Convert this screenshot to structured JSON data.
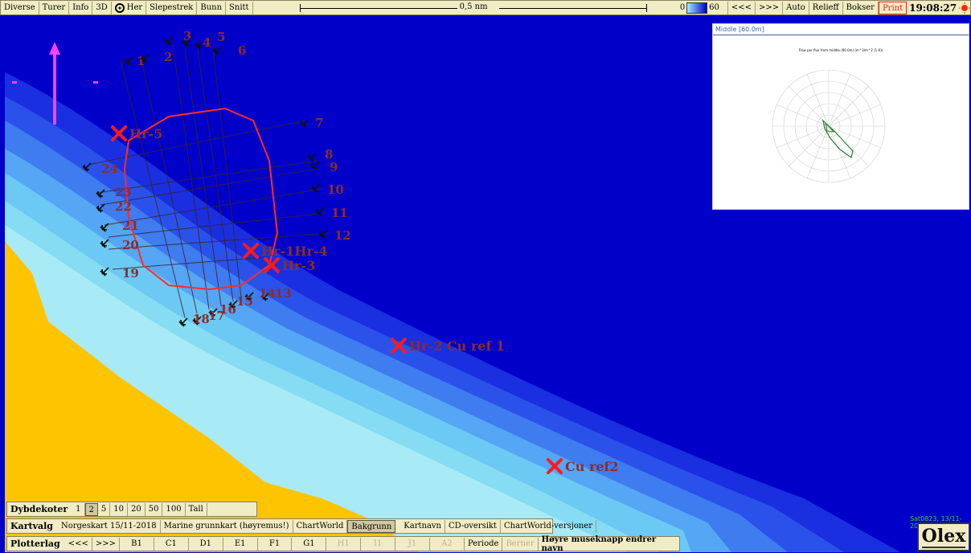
{
  "topbar": {
    "buttons": [
      "Diverse",
      "Turer",
      "Info",
      "3D",
      "Her",
      "Slepestrek",
      "Bunn",
      "Snitt"
    ],
    "scale_label": "0,5 nm",
    "depth_min": "0",
    "depth_max": "60",
    "nav_prev": "<<<",
    "nav_next": ">>>",
    "right_buttons": [
      "Auto",
      "Relieff",
      "Bokser"
    ],
    "print_label": "Print",
    "clock": "19:08:27"
  },
  "inset": {
    "title": "Middle [60.0m]",
    "subtitle": "Flow per flux from middle (60.0m) (m^3/m^2 (1-0))"
  },
  "markers": [
    {
      "label": "Hr-5"
    },
    {
      "label": "Hr-1Hr-4"
    },
    {
      "label": "Hr-3"
    },
    {
      "label": "Hr-2 Cu ref 1"
    },
    {
      "label": "Cu ref2"
    }
  ],
  "anchors": [
    "1",
    "2",
    "3",
    "4",
    "5",
    "6",
    "7",
    "8",
    "9",
    "10",
    "11",
    "12",
    "13",
    "14",
    "15",
    "16",
    "17",
    "18",
    "19",
    "20",
    "21",
    "22",
    "23",
    "24"
  ],
  "dybdekoter": {
    "label": "Dybdekoter",
    "values": [
      "1",
      "2",
      "5",
      "10",
      "20",
      "50",
      "100",
      "Tall"
    ],
    "selected": "2"
  },
  "kartvalg": {
    "label": "Kartvalg",
    "items": [
      "Norgeskart 15/11-2018",
      "Marine grunnkart (høyremus!)",
      "ChartWorld",
      "Bakgrunn",
      "Kartnavn",
      "CD-oversikt",
      "ChartWorld-versjoner"
    ],
    "selected": "Bakgrunn"
  },
  "plotterlag": {
    "label": "Plotterlag",
    "prev": "<<<",
    "next": ">>>",
    "layers": [
      "B1",
      "C1",
      "D1",
      "E1",
      "F1",
      "G1",
      "H1",
      "I1",
      "J1",
      "A2"
    ],
    "periode": "Periode",
    "bruner": "Berner",
    "hint": "Høyre museknapp endrer navn"
  },
  "status": {
    "coords": "Sat0823, 13/11-2020"
  },
  "brand": "Olex",
  "colors": {
    "sea_deep": "#0000c8",
    "land": "#ffc400",
    "shallow": "#7de0f0",
    "track": "#e02020",
    "label": "#8a2d2d"
  }
}
